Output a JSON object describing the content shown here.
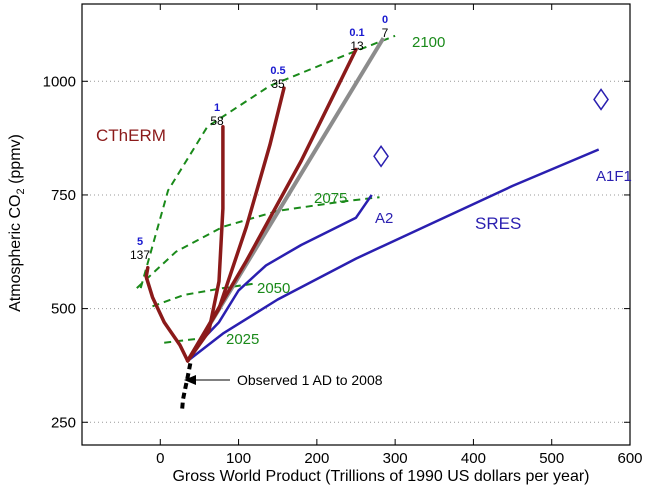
{
  "chart_data": {
    "type": "line",
    "xlabel": "Gross World Product (Trillions of 1990 US dollars per year)",
    "ylabel_main": "Atmospheric CO",
    "ylabel_sub": "2",
    "ylabel_unit": " (ppmv)",
    "xlim": [
      -100,
      600
    ],
    "ylim": [
      200,
      1170
    ],
    "x_ticks": [
      0,
      100,
      200,
      300,
      400,
      500,
      600
    ],
    "x_tick_labels": [
      "0",
      "100",
      "200",
      "300",
      "400",
      "500",
      "600"
    ],
    "y_ticks": [
      250,
      500,
      750,
      1000
    ],
    "y_tick_labels": [
      "250",
      "500",
      "750",
      "1000"
    ],
    "grid_y": true,
    "colors": {
      "ctherm": "#8b1a1a",
      "sres": "#2a1fb0",
      "isoline": "#1a8a1a",
      "grey": "#8c8c8c",
      "observed": "#000000",
      "rate": "#1a1ad0"
    },
    "observed": {
      "label": "Observed 1 AD to 2008",
      "x": [
        28,
        29,
        32,
        35,
        39
      ],
      "y": [
        280,
        300,
        325,
        350,
        385
      ]
    },
    "ctherm_series": [
      {
        "rate": "5",
        "value": "137",
        "x": [
          35,
          25,
          5,
          -10,
          -18,
          -16
        ],
        "y": [
          385,
          420,
          470,
          525,
          570,
          590
        ]
      },
      {
        "rate": "1",
        "value": "58",
        "x": [
          35,
          62,
          75,
          80,
          80
        ],
        "y": [
          385,
          450,
          560,
          720,
          900
        ]
      },
      {
        "rate": "0.5",
        "value": "35",
        "x": [
          35,
          75,
          110,
          140,
          158
        ],
        "y": [
          385,
          500,
          680,
          860,
          985
        ]
      },
      {
        "rate": "0.1",
        "value": "13",
        "x": [
          35,
          110,
          180,
          250
        ],
        "y": [
          385,
          605,
          825,
          1070
        ]
      }
    ],
    "grey_series": {
      "rate": "0",
      "value": "7",
      "x": [
        35,
        285
      ],
      "y": [
        385,
        1095
      ]
    },
    "sres": {
      "label": "SRES",
      "series": [
        {
          "name": "A2",
          "x": [
            35,
            50,
            75,
            100,
            135,
            180,
            250,
            270
          ],
          "y": [
            385,
            425,
            470,
            540,
            595,
            640,
            700,
            750
          ]
        },
        {
          "name": "A1F1",
          "x": [
            35,
            80,
            150,
            250,
            350,
            450,
            560
          ],
          "y": [
            385,
            445,
            520,
            610,
            690,
            770,
            850
          ]
        }
      ],
      "markers": [
        {
          "x": 282,
          "y": 835
        },
        {
          "x": 563,
          "y": 960
        }
      ]
    },
    "isolines": [
      {
        "label": "2025",
        "x": [
          5,
          30,
          55
        ],
        "y": [
          425,
          430,
          435
        ]
      },
      {
        "label": "2050",
        "x": [
          -10,
          30,
          80,
          120
        ],
        "y": [
          505,
          530,
          545,
          555
        ]
      },
      {
        "label": "2075",
        "x": [
          -30,
          20,
          80,
          150,
          230,
          280
        ],
        "y": [
          545,
          625,
          680,
          715,
          735,
          745
        ]
      },
      {
        "label": "2100",
        "x": [
          -25,
          10,
          60,
          140,
          240,
          300
        ],
        "y": [
          545,
          760,
          900,
          990,
          1060,
          1100
        ]
      }
    ],
    "annotations": {
      "ctherm_label": "CThERM"
    }
  }
}
